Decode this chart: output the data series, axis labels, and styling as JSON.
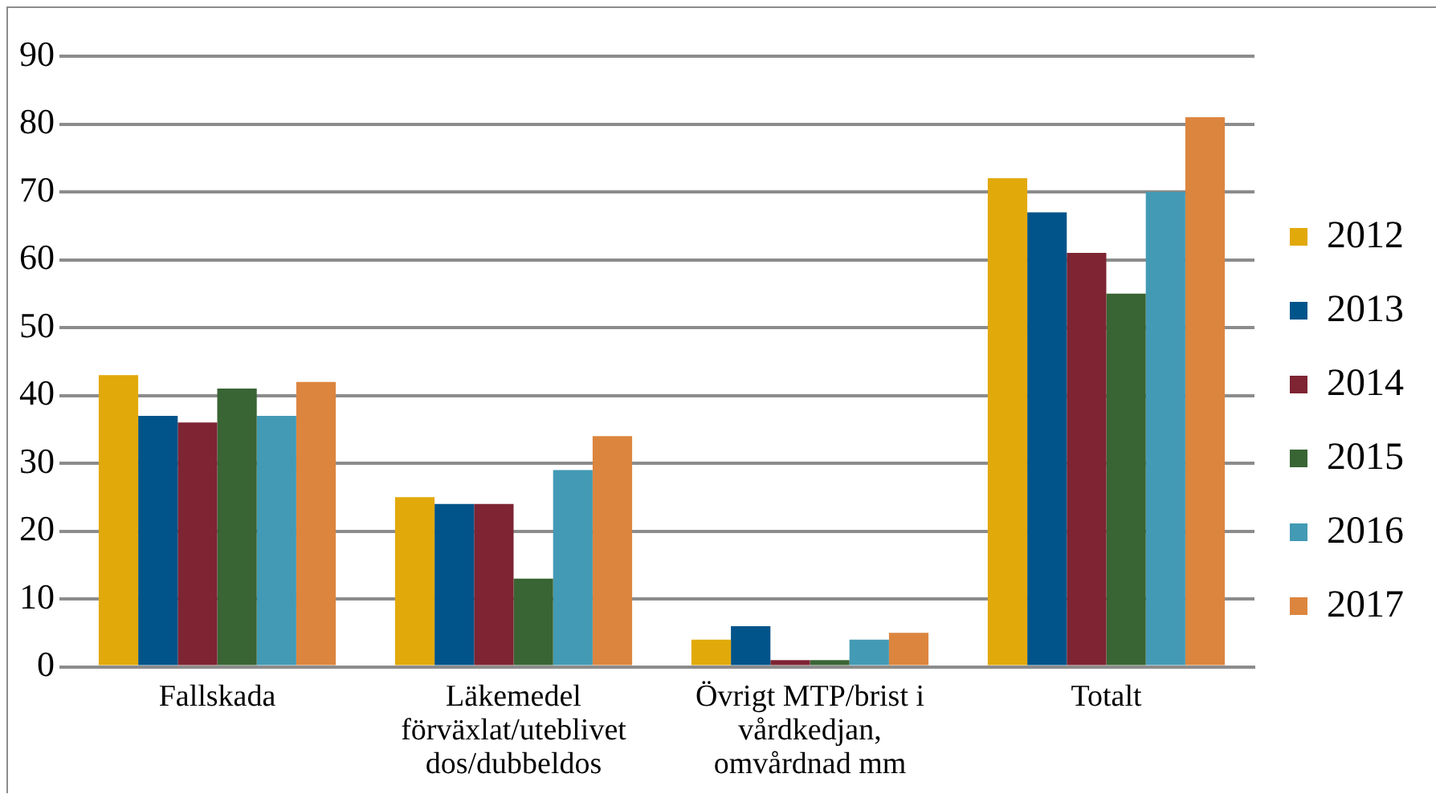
{
  "chart_data": {
    "type": "bar",
    "categories": [
      "Fallskada",
      "Läkemedel förväxlat/uteblivet dos/dubbeldos",
      "Övrigt MTP/brist i vårdkedjan, omvårdnad mm",
      "Totalt"
    ],
    "series": [
      {
        "name": "2012",
        "color": "#e2a90b",
        "values": [
          43,
          25,
          4,
          72
        ]
      },
      {
        "name": "2013",
        "color": "#01548a",
        "values": [
          37,
          24,
          6,
          67
        ]
      },
      {
        "name": "2014",
        "color": "#7e2433",
        "values": [
          36,
          24,
          1,
          61
        ]
      },
      {
        "name": "2015",
        "color": "#396434",
        "values": [
          41,
          13,
          1,
          55
        ]
      },
      {
        "name": "2016",
        "color": "#439ab4",
        "values": [
          37,
          29,
          4,
          70
        ]
      },
      {
        "name": "2017",
        "color": "#dc853f",
        "values": [
          42,
          34,
          5,
          81
        ]
      }
    ],
    "ylim": [
      0,
      90
    ],
    "yticks": [
      0,
      10,
      20,
      30,
      40,
      50,
      60,
      70,
      80,
      90
    ],
    "grid": "y",
    "legend": "right"
  }
}
